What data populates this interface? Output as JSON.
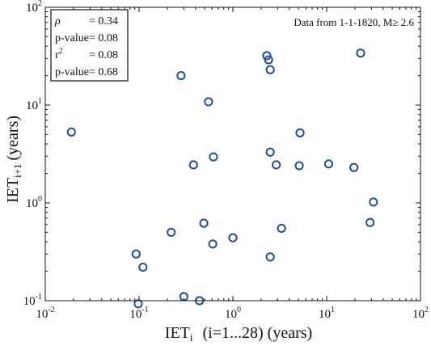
{
  "chart_data": {
    "type": "scatter",
    "scale": {
      "x": "log",
      "y": "log"
    },
    "xlim": [
      0.01,
      100
    ],
    "ylim": [
      0.1,
      100
    ],
    "x_tick_labels": [
      {
        "base": "10",
        "exp": "-2"
      },
      {
        "base": "10",
        "exp": "-1"
      },
      {
        "base": "10",
        "exp": "0"
      },
      {
        "base": "10",
        "exp": "1"
      },
      {
        "base": "10",
        "exp": "2"
      }
    ],
    "y_tick_labels": [
      {
        "base": "10",
        "exp": "-1"
      },
      {
        "base": "10",
        "exp": "0"
      },
      {
        "base": "10",
        "exp": "1"
      },
      {
        "base": "10",
        "exp": "2"
      }
    ],
    "xlabel": {
      "main": "IET",
      "sub": "i",
      "rest": "(i=1...28) (years)"
    },
    "ylabel": {
      "main": "IET",
      "sub": "i+1",
      "rest": "(years)"
    },
    "grid": false,
    "marker": {
      "shape": "open-circle",
      "color": "#1f4fa3"
    },
    "stats_box": {
      "position": "top-left",
      "rows": [
        {
          "label": "ρ",
          "value": "= 0.34"
        },
        {
          "label": "p-value",
          "value": "= 0.08"
        },
        {
          "label": "r",
          "label_sup": "2",
          "value": "= 0.08"
        },
        {
          "label": "p-value",
          "value": "= 0.68"
        }
      ]
    },
    "annotation": {
      "position": "top-right",
      "text": "Data from 1-1-1820, M≥ 2.6"
    },
    "points": [
      {
        "x": 0.019,
        "y": 5.3
      },
      {
        "x": 0.093,
        "y": 0.3
      },
      {
        "x": 0.098,
        "y": 0.093
      },
      {
        "x": 0.11,
        "y": 0.22
      },
      {
        "x": 0.22,
        "y": 0.5
      },
      {
        "x": 0.28,
        "y": 20
      },
      {
        "x": 0.3,
        "y": 0.11
      },
      {
        "x": 0.38,
        "y": 2.45
      },
      {
        "x": 0.44,
        "y": 0.1
      },
      {
        "x": 0.49,
        "y": 0.62
      },
      {
        "x": 0.55,
        "y": 10.8
      },
      {
        "x": 0.61,
        "y": 0.38
      },
      {
        "x": 0.62,
        "y": 2.95
      },
      {
        "x": 1.0,
        "y": 0.44
      },
      {
        "x": 2.3,
        "y": 32
      },
      {
        "x": 2.4,
        "y": 29
      },
      {
        "x": 2.5,
        "y": 23
      },
      {
        "x": 2.5,
        "y": 3.3
      },
      {
        "x": 2.5,
        "y": 0.28
      },
      {
        "x": 2.9,
        "y": 2.45
      },
      {
        "x": 3.3,
        "y": 0.55
      },
      {
        "x": 5.2,
        "y": 5.2
      },
      {
        "x": 5.1,
        "y": 2.4
      },
      {
        "x": 10.5,
        "y": 2.5
      },
      {
        "x": 19.5,
        "y": 2.3
      },
      {
        "x": 23,
        "y": 34
      },
      {
        "x": 29,
        "y": 0.63
      },
      {
        "x": 31.5,
        "y": 1.02
      }
    ]
  }
}
